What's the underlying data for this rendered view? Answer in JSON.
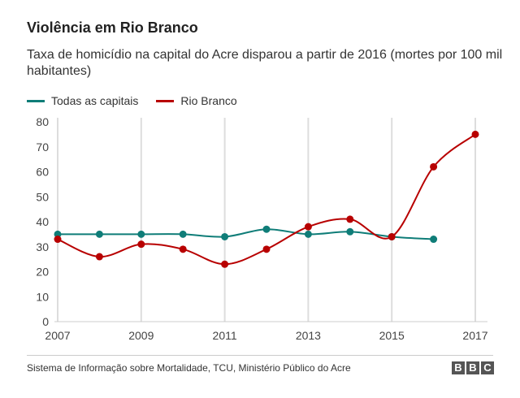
{
  "chart_data": {
    "type": "line",
    "title": "Violência em Rio Branco",
    "subtitle": "Taxa de homicídio na capital do Acre disparou a partir de 2016 (mortes por 100 mil habitantes)",
    "xlabel": "",
    "ylabel": "",
    "xlim": [
      2007,
      2017
    ],
    "ylim": [
      0,
      80
    ],
    "x_ticks": [
      2007,
      2009,
      2011,
      2013,
      2015,
      2017
    ],
    "y_ticks": [
      0,
      10,
      20,
      30,
      40,
      50,
      60,
      70,
      80
    ],
    "grid": "vertical",
    "legend": "top-left",
    "series": [
      {
        "name": "Todas as capitais",
        "color": "#0f7d78",
        "x": [
          2007,
          2008,
          2009,
          2010,
          2011,
          2012,
          2013,
          2014,
          2015,
          2016
        ],
        "values": [
          35,
          35,
          35,
          35,
          34,
          37,
          35,
          36,
          34,
          33
        ]
      },
      {
        "name": "Rio Branco",
        "color": "#b80000",
        "x": [
          2007,
          2008,
          2009,
          2010,
          2011,
          2012,
          2013,
          2014,
          2015,
          2016,
          2017
        ],
        "values": [
          33,
          26,
          31,
          29,
          23,
          29,
          38,
          41,
          34,
          62,
          75
        ]
      }
    ]
  },
  "source": "Sistema de Informação sobre Mortalidade, TCU, Ministério Público do Acre",
  "logo": [
    "B",
    "B",
    "C"
  ]
}
